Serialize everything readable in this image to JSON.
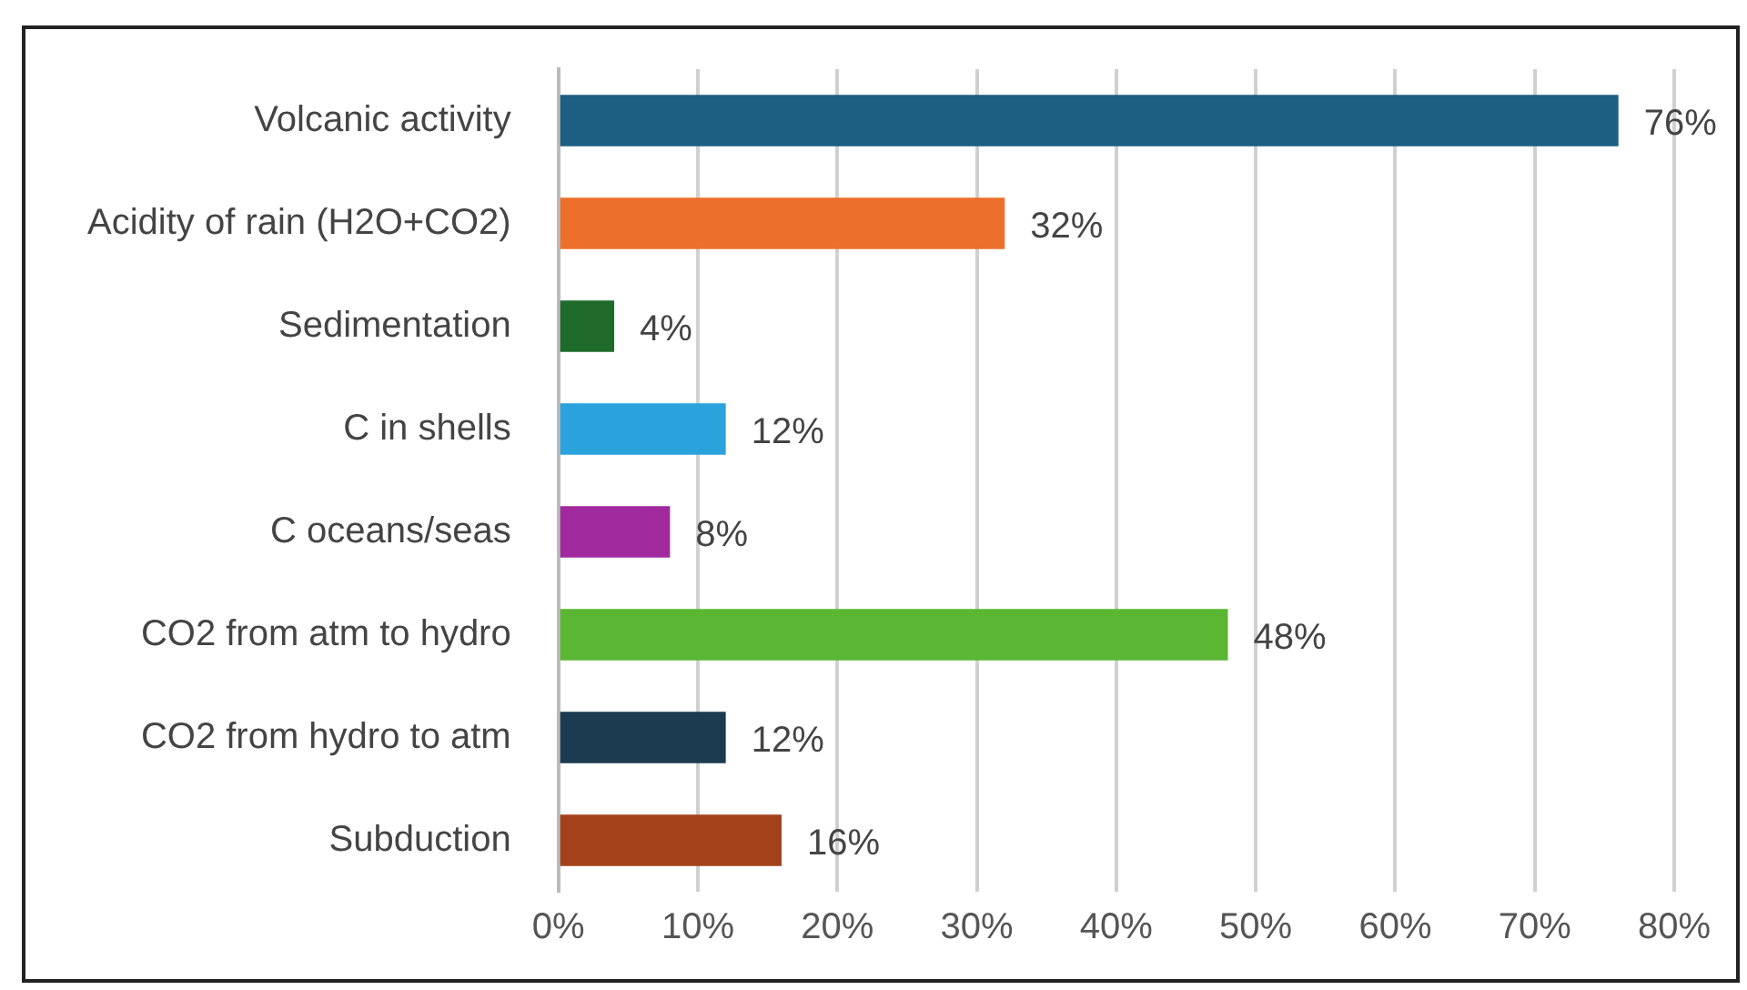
{
  "chart_data": {
    "type": "bar",
    "orientation": "horizontal",
    "categories": [
      "Volcanic activity",
      "Acidity of rain (H2O+CO2)",
      "Sedimentation",
      "C in shells",
      "C oceans/seas",
      "CO2 from atm to hydro",
      "CO2 from hydro to atm",
      "Subduction"
    ],
    "values": [
      76,
      32,
      4,
      12,
      8,
      48,
      12,
      16
    ],
    "colors": [
      "#1d5f82",
      "#ec6f2b",
      "#1e6b2b",
      "#2aa2dc",
      "#a1299e",
      "#5bb633",
      "#1c3a50",
      "#a3421a"
    ],
    "value_labels": [
      "76%",
      "32%",
      "4%",
      "12%",
      "8%",
      "48%",
      "12%",
      "16%"
    ],
    "xlim": [
      0,
      80
    ],
    "xticks": [
      {
        "value": 0,
        "label": "0%"
      },
      {
        "value": 10,
        "label": "10%"
      },
      {
        "value": 20,
        "label": "20%"
      },
      {
        "value": 30,
        "label": "30%"
      },
      {
        "value": 40,
        "label": "40%"
      },
      {
        "value": 50,
        "label": "50%"
      },
      {
        "value": 60,
        "label": "60%"
      },
      {
        "value": 70,
        "label": "70%"
      },
      {
        "value": 80,
        "label": "80%"
      }
    ],
    "grid": "x"
  }
}
